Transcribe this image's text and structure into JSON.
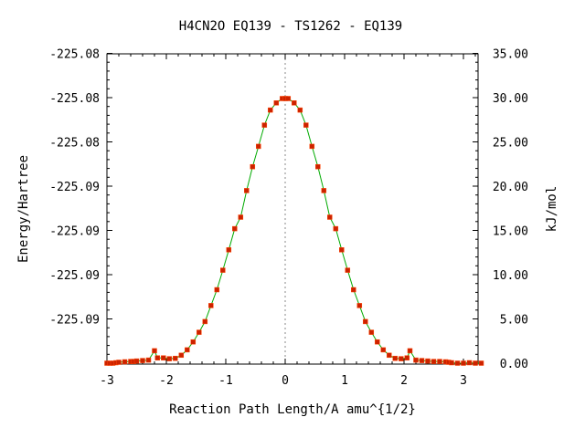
{
  "chart_data": {
    "type": "line",
    "title": "H4CN2O    EQ139 - TS1262 - EQ139",
    "xlabel": "Reaction Path Length/A amu^{1/2}",
    "ylabel_left": "Energy/Hartree",
    "ylabel_right": "kJ/mol",
    "xlim": [
      -3,
      3.3
    ],
    "ylim_right": [
      0,
      35
    ],
    "x_ticks": [
      -3,
      -2,
      -1,
      0,
      1,
      2,
      3
    ],
    "x_tick_labels": [
      "-3",
      "-2",
      "-1",
      "0",
      "1",
      "2",
      "3"
    ],
    "y_left_tick_labels": [
      "-225.08",
      "-225.08",
      "-225.08",
      "-225.09",
      "-225.09",
      "-225.09",
      "-225.09"
    ],
    "y_right_ticks": [
      0,
      5,
      10,
      15,
      20,
      25,
      30,
      35
    ],
    "y_right_tick_labels": [
      "0.00",
      "5.00",
      "10.00",
      "15.00",
      "20.00",
      "25.00",
      "30.00",
      "35.00"
    ],
    "grid": false,
    "ts_marker_x": 0,
    "colors": {
      "curve": "#00aa00",
      "points": "#cc2200",
      "ts_line": "#888888"
    },
    "series": [
      {
        "x": [
          -3.0,
          -2.95,
          -2.9,
          -2.85,
          -2.8,
          -2.7,
          -2.6,
          -2.55,
          -2.5,
          -2.4,
          -2.3,
          -2.2,
          -2.15,
          -2.05,
          -1.95,
          -1.85,
          -1.75,
          -1.65,
          -1.55,
          -1.45,
          -1.35,
          -1.25,
          -1.15,
          -1.05,
          -0.95,
          -0.85,
          -0.75,
          -0.65,
          -0.55,
          -0.45,
          -0.35,
          -0.25,
          -0.15,
          -0.05,
          0.0,
          0.05,
          0.15,
          0.25,
          0.35,
          0.45,
          0.55,
          0.65,
          0.75,
          0.85,
          0.95,
          1.05,
          1.15,
          1.25,
          1.35,
          1.45,
          1.55,
          1.65,
          1.75,
          1.85,
          1.95,
          2.05,
          2.1,
          2.2,
          2.3,
          2.4,
          2.5,
          2.6,
          2.7,
          2.75,
          2.8,
          2.9,
          3.0,
          3.1,
          3.2,
          3.3
        ],
        "y": [
          0.0,
          0.0,
          0.0,
          0.05,
          0.1,
          0.15,
          0.2,
          0.2,
          0.25,
          0.3,
          0.35,
          1.4,
          0.6,
          0.6,
          0.5,
          0.55,
          0.9,
          1.5,
          2.4,
          3.5,
          4.7,
          6.5,
          8.3,
          10.5,
          12.8,
          15.2,
          16.5,
          19.5,
          22.2,
          24.5,
          26.9,
          28.6,
          29.4,
          29.9,
          29.9,
          29.9,
          29.4,
          28.6,
          26.9,
          24.5,
          22.2,
          19.5,
          16.5,
          15.2,
          12.8,
          10.5,
          8.3,
          6.5,
          4.7,
          3.5,
          2.4,
          1.5,
          0.9,
          0.55,
          0.5,
          0.6,
          1.4,
          0.35,
          0.3,
          0.25,
          0.2,
          0.2,
          0.15,
          0.1,
          0.05,
          0.0,
          0.0,
          0.05,
          0.0,
          0.0
        ]
      }
    ]
  }
}
